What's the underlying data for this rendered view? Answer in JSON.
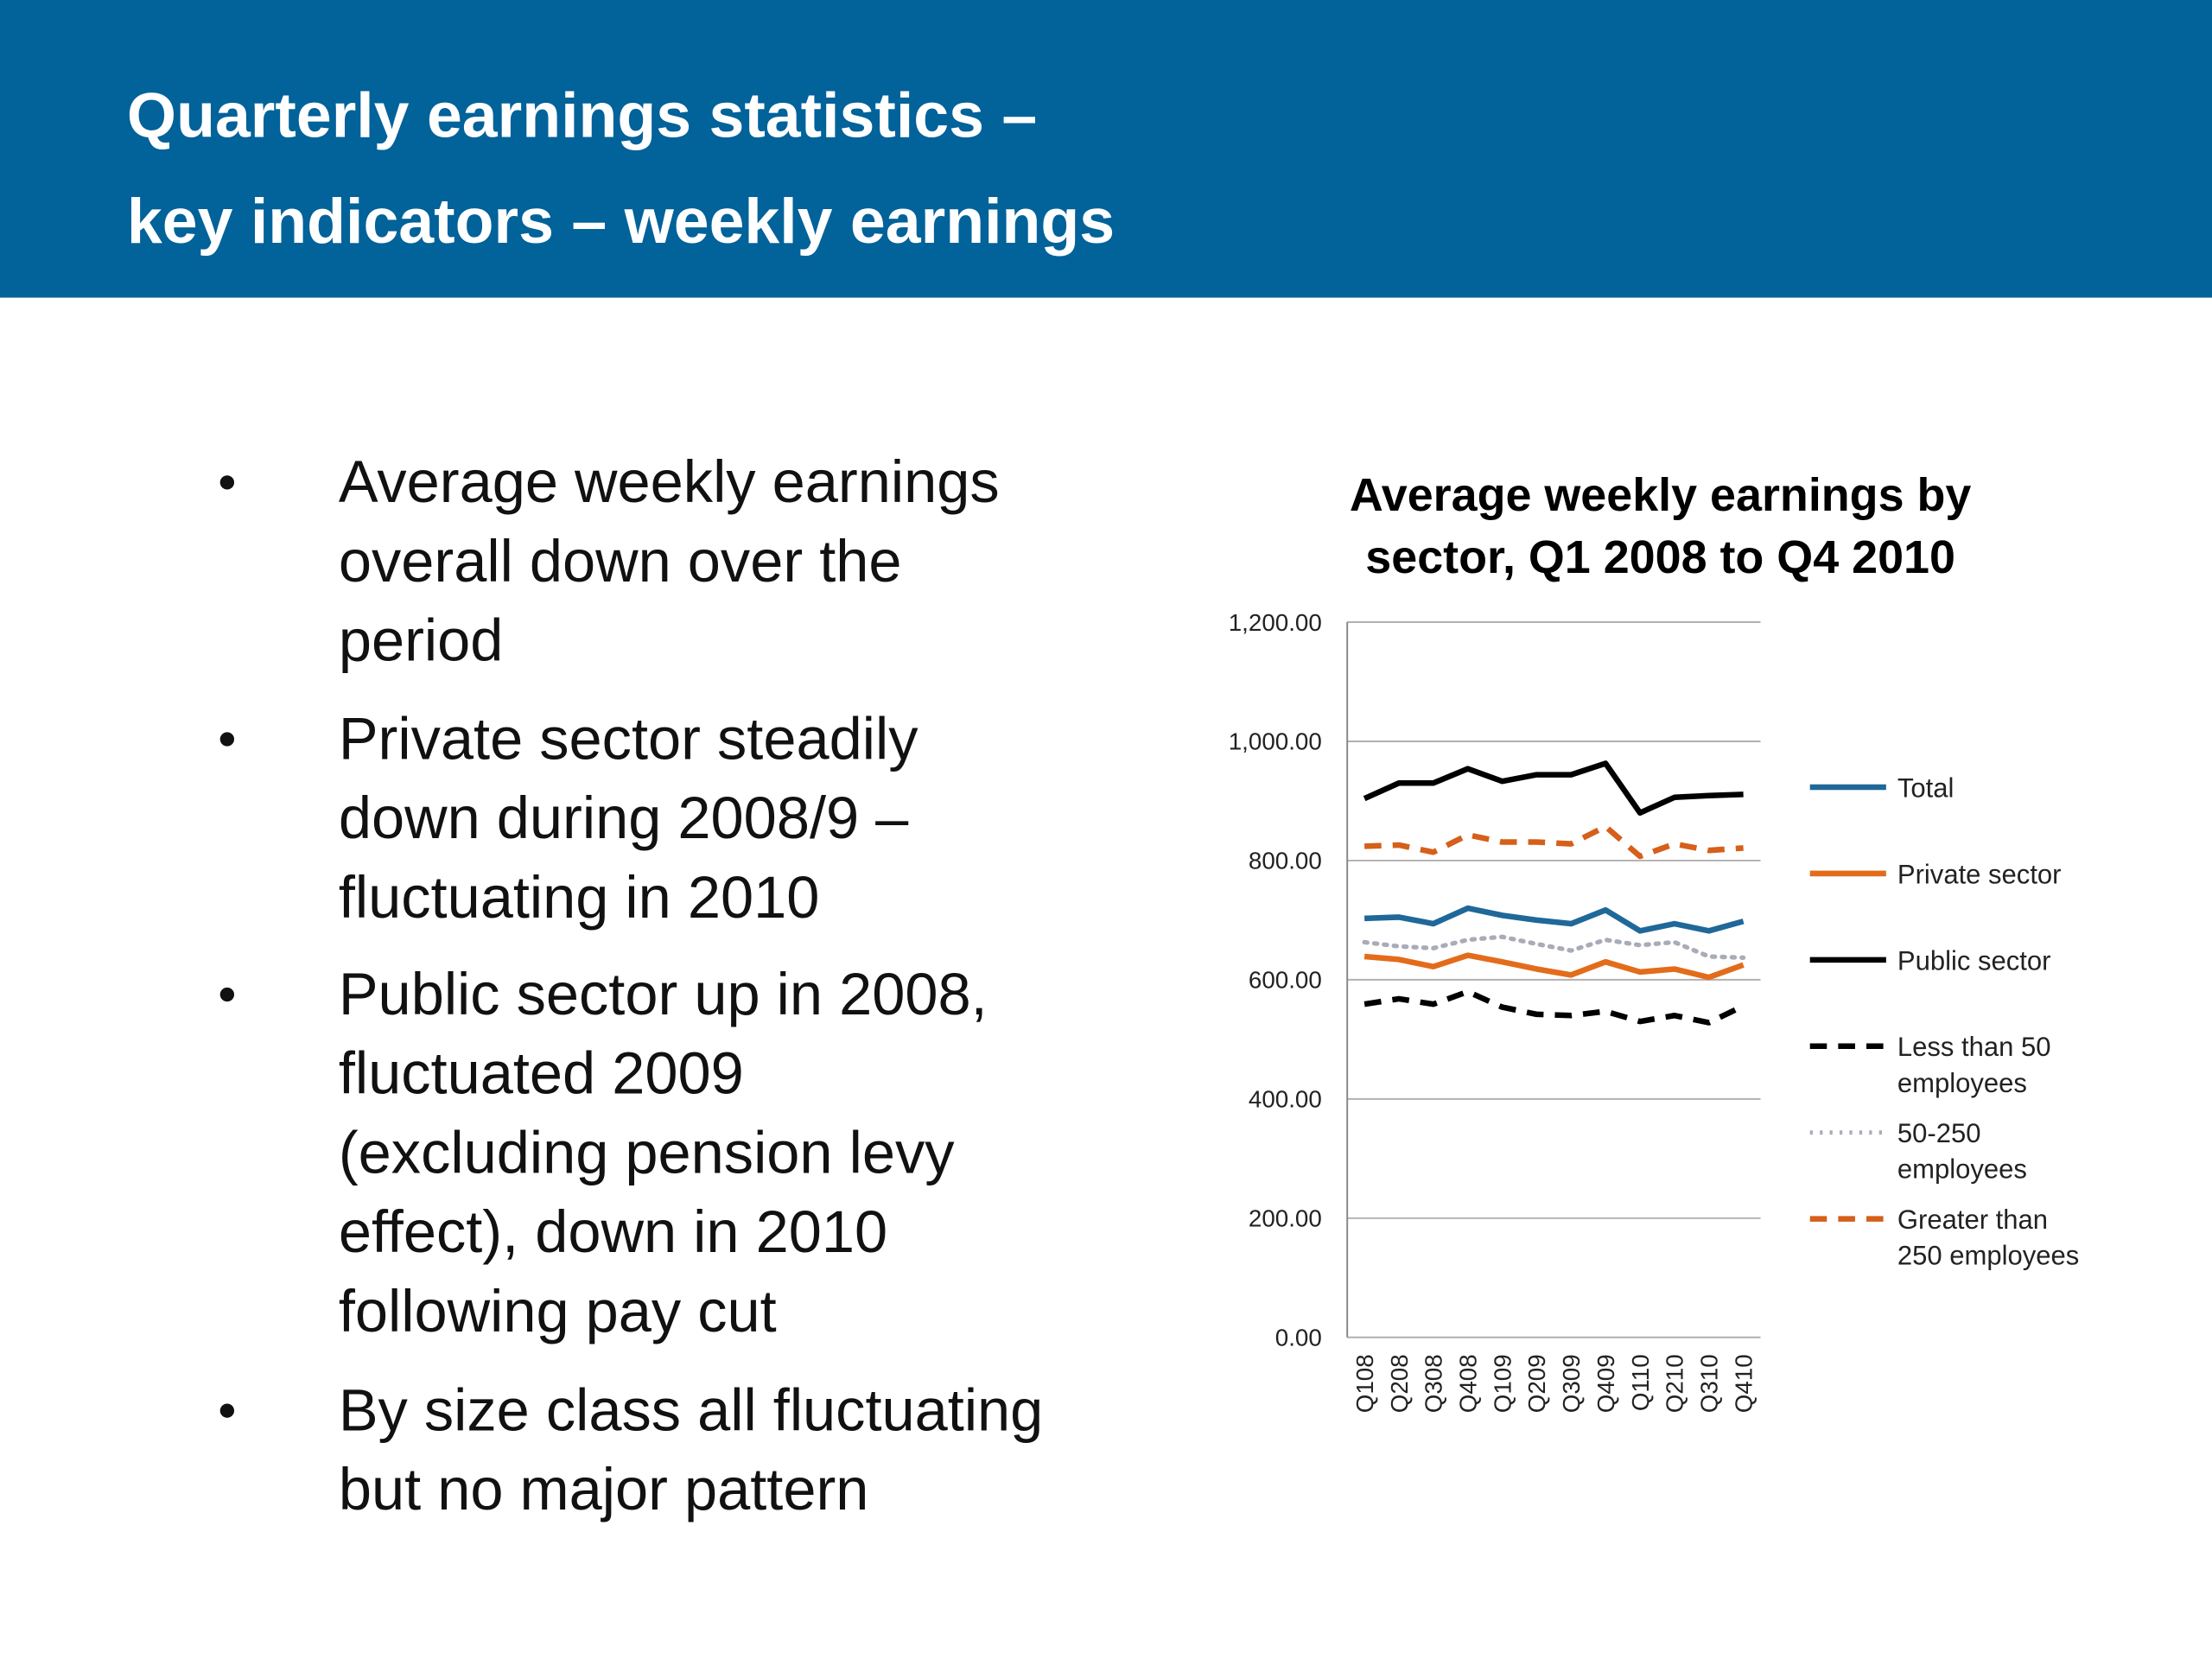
{
  "header": {
    "title_lines": [
      "Quarterly earnings statistics –",
      "key indicators – weekly earnings"
    ]
  },
  "bullets": [
    [
      "Average weekly earnings",
      "overall down over the",
      "period"
    ],
    [
      "Private sector steadily",
      "down during 2008/9 –",
      "fluctuating in 2010"
    ],
    [
      "Public sector up in 2008,",
      "fluctuated 2009",
      "(excluding pension levy",
      "effect), down in 2010",
      "following pay cut"
    ],
    [
      "By size class all fluctuating",
      "but no major pattern"
    ]
  ],
  "chart_data": {
    "type": "line",
    "title_lines": [
      "Average weekly earnings by",
      "sector, Q1 2008 to Q4 2010"
    ],
    "categories": [
      "Q108",
      "Q208",
      "Q308",
      "Q408",
      "Q109",
      "Q209",
      "Q309",
      "Q409",
      "Q110",
      "Q210",
      "Q310",
      "Q410"
    ],
    "ylim": [
      0,
      1200
    ],
    "yticks": [
      {
        "value": 0,
        "label": "0.00"
      },
      {
        "value": 200,
        "label": "200.00"
      },
      {
        "value": 400,
        "label": "400.00"
      },
      {
        "value": 600,
        "label": "600.00"
      },
      {
        "value": 800,
        "label": "800.00"
      },
      {
        "value": 1000,
        "label": "1,000.00"
      },
      {
        "value": 1200,
        "label": "1,200.00"
      }
    ],
    "grid": true,
    "legend": "right",
    "series": [
      {
        "name": "Total",
        "color": "#1f6899",
        "dash": "solid",
        "values": [
          703,
          705,
          694,
          720,
          708,
          700,
          694,
          717,
          682,
          694,
          682,
          698
        ]
      },
      {
        "name": "Private sector",
        "color": "#e36c1b",
        "dash": "solid",
        "values": [
          639,
          634,
          622,
          641,
          630,
          618,
          608,
          630,
          613,
          618,
          604,
          625
        ]
      },
      {
        "name": "Public sector",
        "color": "#000000",
        "dash": "solid",
        "values": [
          904,
          930,
          930,
          954,
          933,
          944,
          944,
          963,
          880,
          906,
          909,
          911
        ]
      },
      {
        "name": "Less than 50 employees",
        "color": "#000000",
        "dash": "dashed",
        "values": [
          559,
          568,
          559,
          580,
          554,
          542,
          540,
          547,
          530,
          540,
          528,
          556
        ]
      },
      {
        "name": "50-250 employees",
        "color": "#a9acb8",
        "dash": "dotted",
        "values": [
          663,
          656,
          653,
          667,
          672,
          660,
          649,
          667,
          658,
          663,
          639,
          637
        ]
      },
      {
        "name": "Greater than 250 employees",
        "color": "#d65f1a",
        "dash": "dashed",
        "values": [
          824,
          826,
          814,
          843,
          831,
          831,
          828,
          857,
          807,
          828,
          817,
          821
        ]
      }
    ]
  }
}
